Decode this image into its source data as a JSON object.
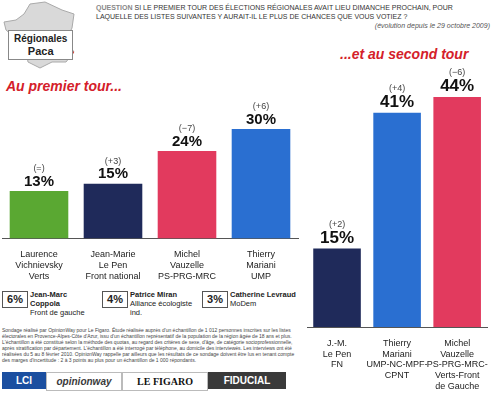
{
  "header": {
    "region_label": [
      "Régionales",
      "Paca"
    ],
    "question_label": "QUESTION",
    "question": "SI LE PREMIER TOUR DES ÉLECTIONS RÉGIONALES AVAIT LIEU DIMANCHE PROCHAIN, POUR LAQUELLE DES LISTES SUIVANTES Y AURAIT-IL LE PLUS DE CHANCES QUE VOUS VOTIEZ ?",
    "note": "(évolution depuis le 29 octobre 2009)"
  },
  "chart_data": [
    {
      "type": "bar",
      "title": "Au premier tour...",
      "categories": [
        "Laurence Vichnievsky",
        "Jean-Marie Le Pen",
        "Michel Vauzelle",
        "Thierry Mariani"
      ],
      "parties": [
        "Verts",
        "Front national",
        "PS-PRG-MRC",
        "UMP"
      ],
      "values": [
        13,
        15,
        24,
        30
      ],
      "value_labels": [
        "13%",
        "15%",
        "24%",
        "30%"
      ],
      "changes": [
        "(=)",
        "(+3)",
        "(−7)",
        "(+6)"
      ],
      "colors": [
        "#5aa832",
        "#1f2a5a",
        "#e23a5e",
        "#2a6fd1"
      ],
      "ylim": [
        0,
        30
      ],
      "grid": false,
      "data_labels": true,
      "tick_labels": "x"
    },
    {
      "type": "bar",
      "title": "...et au second tour",
      "categories": [
        "J.-M. Le Pen",
        "Thierry Mariani",
        "Michel Vauzelle"
      ],
      "parties": [
        "FN",
        "UMP-NC-MPF-CPNT",
        "PS-PRG-MRC-Verts-Front de Gauche"
      ],
      "values": [
        15,
        41,
        44
      ],
      "value_labels": [
        "15%",
        "41%",
        "44%"
      ],
      "changes": [
        "(+2)",
        "(+4)",
        "(−6)"
      ],
      "colors": [
        "#1f2a5a",
        "#2a6fd1",
        "#e23a5e"
      ],
      "ylim": [
        0,
        44
      ],
      "grid": false,
      "data_labels": true,
      "tick_labels": "x"
    }
  ],
  "other_lists": [
    {
      "share": "6%",
      "name": "Jean-Marc Coppola",
      "party": "Front de gauche"
    },
    {
      "share": "4%",
      "name": "Patrice Miran",
      "party": "Alliance écologiste ind."
    },
    {
      "share": "3%",
      "name": "Catherine Levraud",
      "party": "MoDem"
    }
  ],
  "source_note": "Sondage réalisé par OpinionWay pour Le Figaro. Étude réalisée auprès d'un échantillon de 1 012 personnes inscrites sur les listes électorales en Provence-Alpes-Côte d'Azur, issu d'un échantillon représentatif de la population de la région âgée de 18 ans et plus. L'échantillon a été constitué selon la méthode des quotas, au regard des critères de sexe, d'âge, de catégorie socioprofessionnelle, après stratification par département. L'échantillon a été interrogé par téléphone, au domicile des interviewés. Les interviews ont été réalisées du 5 au 8 février 2010. OpinionWay rappelle par ailleurs que les résultats de ce sondage doivent être lus en tenant compte des marges d'incertitude : 2 à 3 points au plus pour un échantillon de 1 000 répondants.",
  "logos": [
    "LCI",
    "opinionway",
    "LE FIGARO",
    "FIDUCIAL"
  ]
}
